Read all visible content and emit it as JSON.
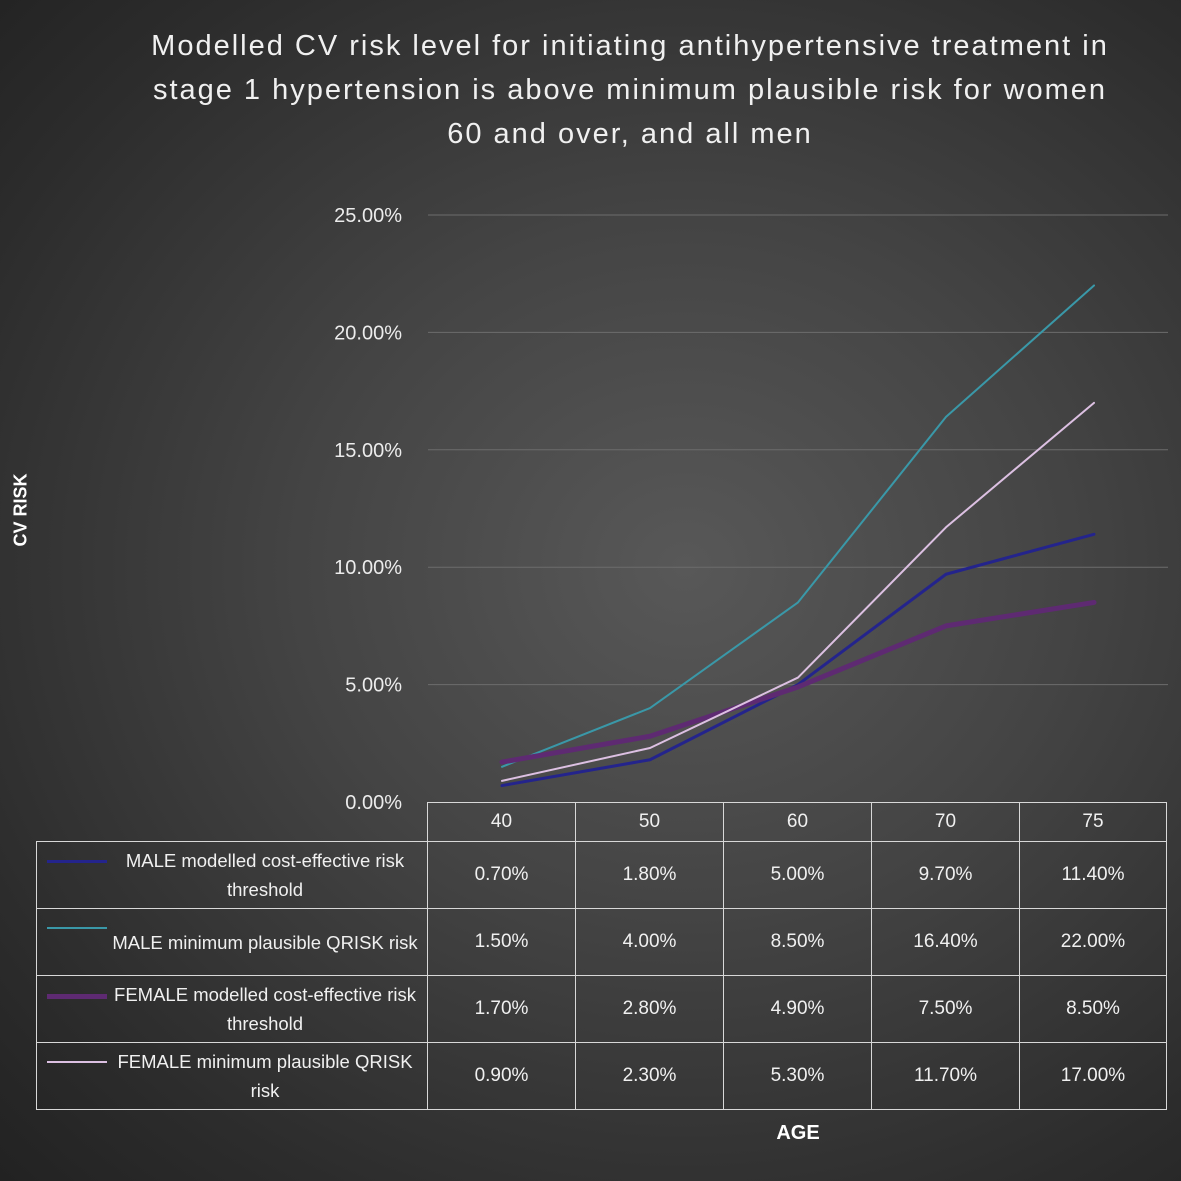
{
  "chart_data": {
    "type": "line",
    "title": "Modelled  CV risk level for initiating  antihypertensive treatment  in stage 1 hypertension  is above minimum plausible risk for women  60 and over,  and all men",
    "xlabel": "AGE",
    "ylabel": "CV RISK",
    "categories": [
      "40",
      "50",
      "60",
      "70",
      "75"
    ],
    "y_ticks": [
      "0.00%",
      "5.00%",
      "10.00%",
      "15.00%",
      "20.00%",
      "25.00%"
    ],
    "ylim": [
      0,
      25
    ],
    "grid": true,
    "legend_placement": "data-table",
    "series": [
      {
        "name": "MALE modelled cost-effective risk threshold",
        "color": "#24248c",
        "values": [
          0.7,
          1.8,
          5.0,
          9.7,
          11.4
        ],
        "labels": [
          "0.70%",
          "1.80%",
          "5.00%",
          "9.70%",
          "11.40%"
        ]
      },
      {
        "name": "MALE minimum plausible QRISK risk",
        "color": "#3a98a8",
        "values": [
          1.5,
          4.0,
          8.5,
          16.4,
          22.0
        ],
        "labels": [
          "1.50%",
          "4.00%",
          "8.50%",
          "16.40%",
          "22.00%"
        ]
      },
      {
        "name": "FEMALE modelled cost-effective risk threshold",
        "color": "#5e2a72",
        "values": [
          1.7,
          2.8,
          4.9,
          7.5,
          8.5
        ],
        "labels": [
          "1.70%",
          "2.80%",
          "4.90%",
          "7.50%",
          "8.50%"
        ]
      },
      {
        "name": "FEMALE minimum plausible QRISK risk",
        "color": "#dcc0e2",
        "values": [
          0.9,
          2.3,
          5.3,
          11.7,
          17.0
        ],
        "labels": [
          "0.90%",
          "2.30%",
          "5.30%",
          "11.70%",
          "17.00%"
        ]
      }
    ]
  }
}
